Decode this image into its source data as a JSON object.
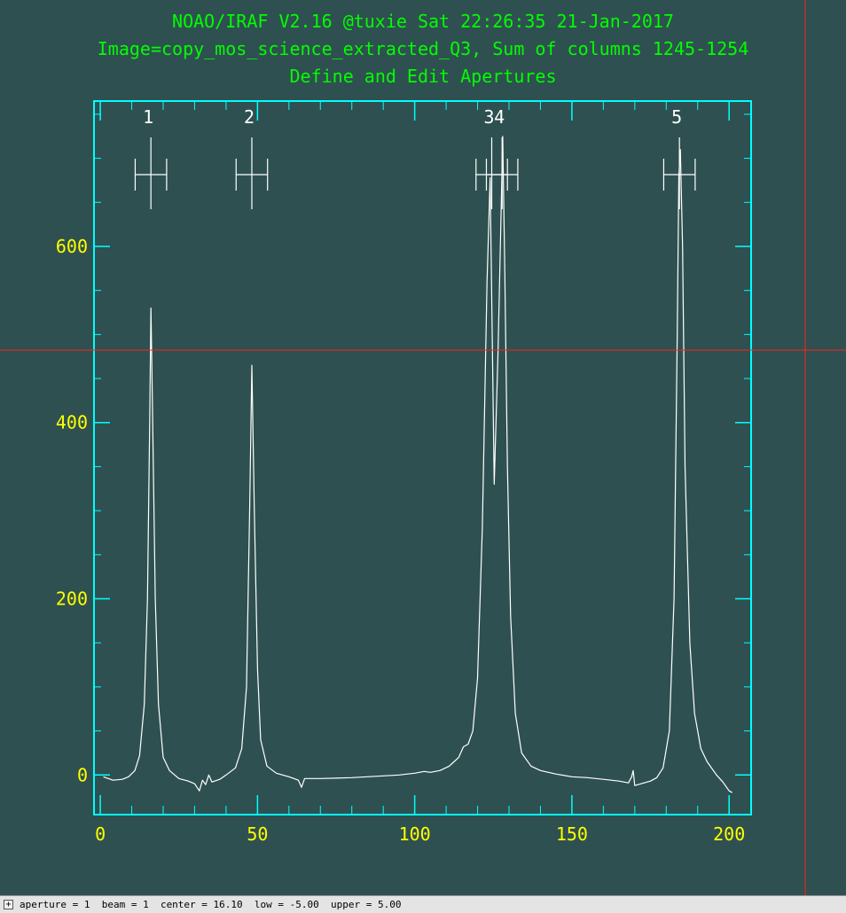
{
  "header": {
    "line1": "NOAO/IRAF V2.16 @tuxie Sat 22:26:35 21-Jan-2017",
    "line2": "Image=copy_mos_science_extracted_Q3, Sum of columns 1245-1254",
    "line3": "Define and Edit Apertures"
  },
  "status_bar": {
    "toggle_label": "+",
    "text": "aperture = 1  beam = 1  center = 16.10  low = -5.00  upper = 5.00"
  },
  "colors": {
    "background": "#2f5050",
    "frame": "#00ffff",
    "tick_labels": "#ffff00",
    "header_text": "#00ff00",
    "data_line": "#ffffff",
    "cursor": "#ff2020"
  },
  "chart_data": {
    "type": "line",
    "title": "Define and Edit Apertures",
    "xlim": [
      -2,
      207
    ],
    "ylim": [
      -45,
      765
    ],
    "x_ticks": [
      0,
      50,
      100,
      150,
      200
    ],
    "y_ticks": [
      0,
      200,
      400,
      600
    ],
    "grid": false,
    "series": [
      {
        "points": [
          [
            1,
            -2
          ],
          [
            4,
            -6
          ],
          [
            7,
            -5
          ],
          [
            9,
            -2
          ],
          [
            11,
            5
          ],
          [
            12.5,
            22
          ],
          [
            14,
            80
          ],
          [
            15,
            200
          ],
          [
            15.7,
            400
          ],
          [
            16.1,
            530
          ],
          [
            16.6,
            420
          ],
          [
            17.5,
            200
          ],
          [
            18.5,
            80
          ],
          [
            20,
            20
          ],
          [
            22,
            5
          ],
          [
            25,
            -4
          ],
          [
            28,
            -7
          ],
          [
            30,
            -10
          ],
          [
            31.5,
            -18
          ],
          [
            32.5,
            -6
          ],
          [
            33.5,
            -11
          ],
          [
            34.5,
            0
          ],
          [
            35.5,
            -8
          ],
          [
            38,
            -5
          ],
          [
            40,
            0
          ],
          [
            43,
            8
          ],
          [
            45,
            30
          ],
          [
            46.5,
            100
          ],
          [
            47.5,
            300
          ],
          [
            48.2,
            465
          ],
          [
            49,
            300
          ],
          [
            50,
            120
          ],
          [
            51,
            40
          ],
          [
            53,
            10
          ],
          [
            56,
            2
          ],
          [
            60,
            -2
          ],
          [
            63,
            -6
          ],
          [
            64,
            -14
          ],
          [
            65,
            -4
          ],
          [
            70,
            -4
          ],
          [
            80,
            -3
          ],
          [
            90,
            -1
          ],
          [
            95,
            0
          ],
          [
            100,
            2
          ],
          [
            103,
            4
          ],
          [
            105,
            3
          ],
          [
            108,
            5
          ],
          [
            111,
            10
          ],
          [
            114,
            20
          ],
          [
            115.5,
            32
          ],
          [
            117,
            35
          ],
          [
            118.5,
            50
          ],
          [
            120,
            110
          ],
          [
            121.5,
            280
          ],
          [
            123,
            560
          ],
          [
            124,
            678
          ],
          [
            125.3,
            330
          ],
          [
            126.5,
            480
          ],
          [
            127.5,
            640
          ],
          [
            128,
            725
          ],
          [
            128.7,
            560
          ],
          [
            129.5,
            350
          ],
          [
            130.5,
            180
          ],
          [
            132,
            70
          ],
          [
            134,
            25
          ],
          [
            137,
            10
          ],
          [
            140,
            5
          ],
          [
            145,
            1
          ],
          [
            150,
            -2
          ],
          [
            155,
            -3
          ],
          [
            160,
            -5
          ],
          [
            165,
            -7
          ],
          [
            168,
            -9
          ],
          [
            169,
            -2
          ],
          [
            169.5,
            5
          ],
          [
            170,
            -12
          ],
          [
            172,
            -10
          ],
          [
            175,
            -7
          ],
          [
            177,
            -3
          ],
          [
            179,
            8
          ],
          [
            181,
            50
          ],
          [
            182.5,
            200
          ],
          [
            183.5,
            500
          ],
          [
            184,
            680
          ],
          [
            184.5,
            710
          ],
          [
            185.2,
            600
          ],
          [
            186,
            350
          ],
          [
            187.5,
            150
          ],
          [
            189,
            70
          ],
          [
            191,
            30
          ],
          [
            193,
            15
          ],
          [
            196,
            0
          ],
          [
            198,
            -8
          ],
          [
            200,
            -18
          ],
          [
            201,
            -20
          ]
        ]
      }
    ],
    "apertures": [
      {
        "id": "1",
        "center": 16.1,
        "low": -5.0,
        "upper": 5.0
      },
      {
        "id": "2",
        "center": 48.2,
        "low": -5.0,
        "upper": 5.0
      },
      {
        "id": "3",
        "center": 124.5,
        "low": -5.0,
        "upper": 5.0
      },
      {
        "id": "4",
        "center": 127.8,
        "low": -5.0,
        "upper": 5.0
      },
      {
        "id": "5",
        "center": 184.2,
        "low": -5.0,
        "upper": 5.0
      }
    ]
  }
}
